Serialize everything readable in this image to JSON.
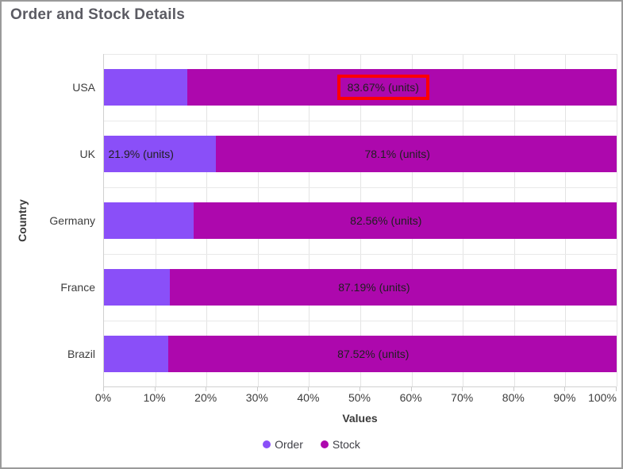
{
  "window": {
    "title": "Order and Stock Details"
  },
  "chart_data": {
    "type": "bar",
    "orientation": "horizontal",
    "stacked": true,
    "stacked_100_percent": true,
    "title": "Order and Stock Details",
    "xlabel": "Values",
    "ylabel": "Country",
    "categories": [
      "USA",
      "UK",
      "Germany",
      "France",
      "Brazil"
    ],
    "series": [
      {
        "name": "Order",
        "color": "#8a4ff8",
        "values": [
          16.33,
          21.9,
          17.44,
          12.81,
          12.48
        ],
        "labels": [
          "",
          "21.9% (units)",
          "",
          "",
          ""
        ]
      },
      {
        "name": "Stock",
        "color": "#ad08ad",
        "values": [
          83.67,
          78.1,
          82.56,
          87.19,
          87.52
        ],
        "labels": [
          "83.67% (units)",
          "78.1% (units)",
          "82.56% (units)",
          "87.19% (units)",
          "87.52% (units)"
        ]
      }
    ],
    "x_ticks": [
      "0%",
      "10%",
      "20%",
      "30%",
      "40%",
      "50%",
      "60%",
      "70%",
      "80%",
      "90%",
      "100%"
    ],
    "xlim": [
      0,
      100
    ],
    "grid": true,
    "legend_position": "bottom",
    "legend": [
      "Order",
      "Stock"
    ]
  },
  "annotation": {
    "type": "highlight_box",
    "category": "USA",
    "series": "Stock",
    "text_in_box": "83.67% (units)",
    "color": "#fe0000"
  },
  "colors": {
    "order_series": "#8a4ff8",
    "stock_series": "#ad08ad",
    "highlight_red": "#fe0000",
    "title_text": "#5b5b63",
    "axis_text": "#3d3d3d",
    "gridline": "#e4e4e4"
  }
}
